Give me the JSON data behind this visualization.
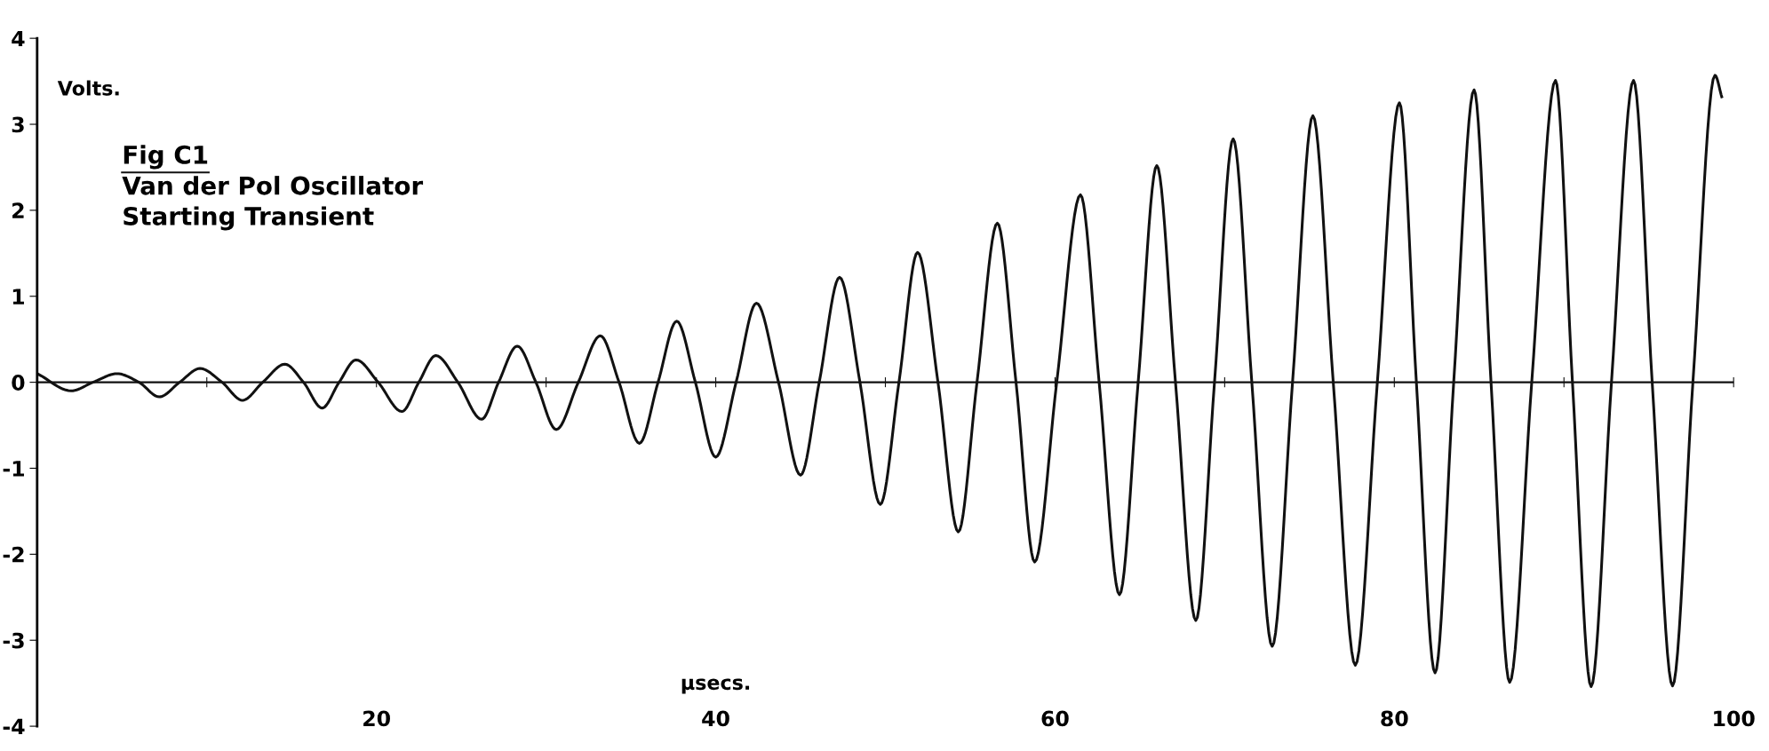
{
  "chart_data": {
    "type": "line",
    "title": "Fig C1",
    "subtitle": "Van der Pol Oscillator\nStarting Transient",
    "xlabel": "µsecs.",
    "ylabel": "Volts.",
    "xlim": [
      0,
      100
    ],
    "ylim": [
      -4,
      4
    ],
    "xticks": [
      {
        "value": 10,
        "label": null
      },
      20,
      {
        "value": 30,
        "label": null
      },
      40,
      {
        "value": 50,
        "label": null
      },
      60,
      {
        "value": 70,
        "label": null
      },
      80,
      {
        "value": 90,
        "label": null
      },
      100
    ],
    "yticks": [
      -4,
      -3,
      -2,
      -1,
      0,
      1,
      2,
      3,
      4
    ],
    "grid": false,
    "ref_lines": [
      {
        "axis": "y",
        "value": 0,
        "color": "#111111"
      }
    ],
    "legend": false,
    "marker": "none",
    "line_style": "solid",
    "series": [
      {
        "color": "#111111",
        "x": [
          0.1,
          2.0,
          3.3,
          4.7,
          6.0,
          7.2,
          8.4,
          9.6,
          10.9,
          12.1,
          13.3,
          14.6,
          15.7,
          16.8,
          17.8,
          18.8,
          20.1,
          21.5,
          22.5,
          23.5,
          24.8,
          26.2,
          27.2,
          28.3,
          29.4,
          30.6,
          31.9,
          33.2,
          34.3,
          35.5,
          36.6,
          37.7,
          38.8,
          40.0,
          41.2,
          42.4,
          43.7,
          45.0,
          46.1,
          47.3,
          48.5,
          49.7,
          50.8,
          51.9,
          53.1,
          54.3,
          55.4,
          56.6,
          57.7,
          58.8,
          60.1,
          61.5,
          62.6,
          63.8,
          64.9,
          66.0,
          67.1,
          68.3,
          69.4,
          70.5,
          71.6,
          72.8,
          74.0,
          75.2,
          76.4,
          77.7,
          79.0,
          80.3,
          81.3,
          82.4,
          83.5,
          84.7,
          85.7,
          86.8,
          88.1,
          89.5,
          90.5,
          91.6,
          92.8,
          94.1,
          95.2,
          96.4,
          97.6,
          98.9,
          99.3
        ],
        "values": [
          0.09,
          -0.1,
          0,
          0.1,
          0,
          -0.17,
          0,
          0.16,
          0,
          -0.21,
          0,
          0.21,
          0,
          -0.3,
          0,
          0.26,
          0,
          -0.34,
          0,
          0.31,
          0,
          -0.43,
          0,
          0.42,
          0,
          -0.55,
          0,
          0.54,
          0,
          -0.71,
          0,
          0.71,
          0,
          -0.87,
          0,
          0.92,
          0,
          -1.08,
          0,
          1.22,
          0,
          -1.42,
          0,
          1.51,
          0,
          -1.74,
          0,
          1.85,
          0,
          -2.09,
          0,
          2.18,
          0,
          -2.47,
          0,
          2.52,
          0,
          -2.77,
          0,
          2.83,
          0,
          -3.07,
          0,
          3.1,
          0,
          -3.29,
          0,
          3.25,
          0,
          -3.38,
          0,
          3.4,
          0,
          -3.49,
          0,
          3.51,
          0,
          -3.54,
          0,
          3.51,
          0,
          -3.53,
          0,
          3.57,
          3.32
        ]
      }
    ]
  }
}
